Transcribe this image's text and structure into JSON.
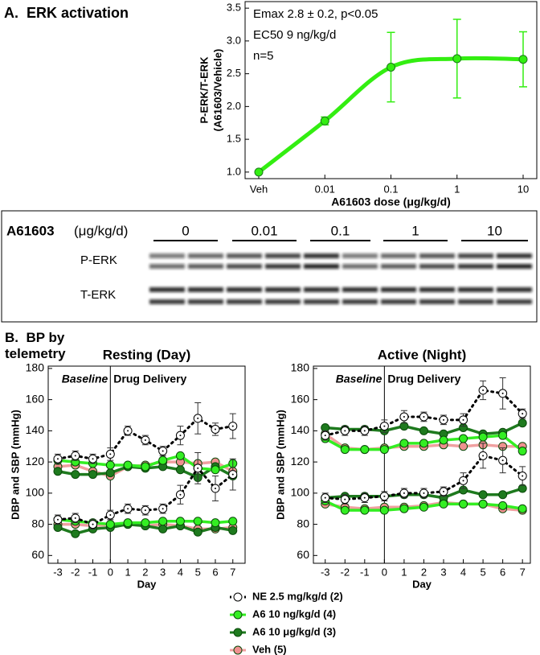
{
  "panel_b_title": "B.  BP by telemetry",
  "blot": {
    "label": "A61603",
    "unit": "(μg/kg/d)",
    "lanes": [
      "0",
      "0.01",
      "0.1",
      "1",
      "10"
    ],
    "rows": [
      "P-ERK",
      "T-ERK"
    ]
  },
  "chart_data": [
    {
      "type": "line",
      "title": "A.  ERK activation",
      "xlabel": "A61603 dose (μg/kg/d)",
      "ylabel": [
        "P-ERK/T-ERK",
        "(A61603/Vehicle)"
      ],
      "annotations": [
        "Emax 2.8 ± 0.2, p<0.05",
        "EC50 9 ng/kg/d",
        "n=5"
      ],
      "categories": [
        "Veh",
        "0.01",
        "0.1",
        "1",
        "10"
      ],
      "values": [
        1.0,
        1.78,
        2.6,
        2.73,
        2.72
      ],
      "errors": [
        0,
        0.06,
        0.53,
        0.6,
        0.42
      ],
      "color": "#33ee11",
      "ylim": [
        0.9,
        3.6
      ],
      "yticks": [
        {
          "value": 1,
          "label": "1.0"
        },
        1.5,
        {
          "value": 2,
          "label": "2.0"
        },
        2.5,
        {
          "value": 3,
          "label": "3.0"
        },
        3.5
      ]
    },
    {
      "type": "line",
      "title": "Resting (Day)",
      "xlabel": "Day",
      "ylabel": "DBP and SBP (mmHg)",
      "annotations": [
        "Baseline",
        "Drug Delivery"
      ],
      "x": [
        -3,
        -2,
        -1,
        0,
        1,
        2,
        3,
        4,
        5,
        6,
        7
      ],
      "xlim": [
        -3.55,
        7.7
      ],
      "xticks": [
        -3,
        -2,
        -1,
        0,
        1,
        2,
        3,
        4,
        5,
        6,
        7
      ],
      "ylim": [
        55,
        181.5
      ],
      "yticks": [
        60,
        80,
        100,
        120,
        140,
        160,
        180
      ],
      "series": [
        {
          "name": "NE 2.5 mg/kg/d (2)",
          "color": "#000000",
          "marker": "#ffffff",
          "dashed": true,
          "sbp": [
            122,
            124,
            122,
            125,
            140,
            134,
            127,
            137,
            148,
            141,
            143
          ],
          "sbp_err": [
            3,
            3,
            3,
            4,
            3,
            3,
            3,
            6,
            10,
            4,
            8
          ],
          "dbp": [
            83,
            84,
            80,
            86,
            90,
            89,
            90,
            99,
            116,
            103,
            112
          ],
          "dbp_err": [
            3,
            3,
            3,
            3,
            3,
            3,
            3,
            6,
            10,
            8,
            10
          ]
        },
        {
          "name": "A6 10 ng/kg/d (4)",
          "color": "#33ee22",
          "marker": "#33ee22",
          "dashed": false,
          "sbp": [
            121,
            120,
            119,
            118,
            118,
            117,
            121,
            124,
            116,
            115,
            119
          ],
          "dbp": [
            83,
            82,
            81,
            80,
            81,
            81,
            82,
            82,
            82,
            81,
            82
          ]
        },
        {
          "name": "A6 10 μg/kg/d (3)",
          "color": "#1e7a1e",
          "marker": "#1e7a1e",
          "dashed": false,
          "sbp": [
            114,
            112,
            112,
            113,
            117,
            116,
            117,
            115,
            110,
            117,
            111
          ],
          "dbp": [
            78,
            74,
            77,
            78,
            80,
            79,
            77,
            79,
            75,
            78,
            76
          ]
        },
        {
          "name": "Veh (5)",
          "color": "#f0a0a0",
          "marker": "#f09090",
          "dashed": false,
          "sbp": [
            117,
            118,
            114,
            111,
            117,
            118,
            120,
            120,
            119,
            120,
            114
          ],
          "dbp": [
            80,
            80,
            79,
            80,
            80,
            79,
            80,
            79,
            77,
            77,
            78
          ]
        }
      ]
    },
    {
      "type": "line",
      "title": "Active (Night)",
      "xlabel": "Day",
      "ylabel": "DBP and SBP (mmHg)",
      "annotations": [
        "Baseline",
        "Drug Delivery"
      ],
      "x": [
        -3,
        -2,
        -1,
        0,
        1,
        2,
        3,
        4,
        5,
        6,
        7
      ],
      "xlim": [
        -3.6,
        7.4
      ],
      "xticks": [
        -3,
        -2,
        -1,
        0,
        1,
        2,
        3,
        4,
        5,
        6,
        7
      ],
      "ylim": [
        55,
        181.5
      ],
      "yticks": [
        60,
        80,
        100,
        120,
        140,
        160,
        180
      ],
      "series": [
        {
          "color": "#000000",
          "marker": "#ffffff",
          "dashed": true,
          "sbp": [
            137,
            140,
            140,
            143,
            149,
            149,
            147,
            147,
            166,
            164,
            151
          ],
          "sbp_err": [
            3,
            3,
            3,
            4,
            4,
            3,
            3,
            4,
            6,
            10,
            3
          ],
          "dbp": [
            97,
            96,
            97,
            98,
            100,
            100,
            101,
            108,
            124,
            121,
            111
          ],
          "dbp_err": [
            3,
            3,
            3,
            3,
            3,
            3,
            3,
            5,
            8,
            8,
            6
          ]
        },
        {
          "color": "#33ee22",
          "marker": "#33ee22",
          "dashed": false,
          "sbp": [
            135,
            128,
            128,
            128,
            132,
            132,
            134,
            135,
            136,
            137,
            127
          ],
          "dbp": [
            95,
            89,
            89,
            89,
            90,
            91,
            93,
            93,
            93,
            92,
            90
          ]
        },
        {
          "color": "#1e7a1e",
          "marker": "#1e7a1e",
          "dashed": false,
          "sbp": [
            142,
            141,
            141,
            140,
            143,
            140,
            138,
            142,
            138,
            139,
            145
          ],
          "dbp": [
            97,
            98,
            98,
            98,
            99,
            99,
            97,
            102,
            99,
            99,
            103
          ]
        },
        {
          "color": "#f0a0a0",
          "marker": "#f09090",
          "dashed": false,
          "sbp": [
            138,
            129,
            128,
            129,
            130,
            130,
            131,
            130,
            131,
            130,
            130
          ],
          "dbp": [
            93,
            91,
            90,
            91,
            91,
            92,
            94,
            93,
            93,
            90,
            89
          ]
        }
      ]
    }
  ]
}
